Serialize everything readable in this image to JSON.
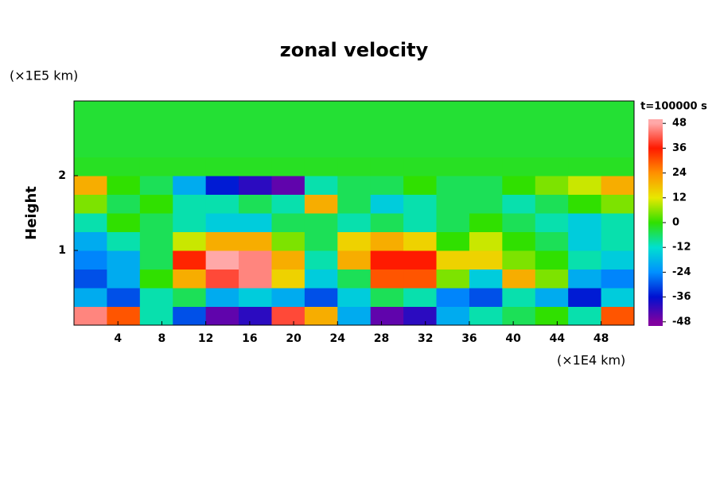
{
  "chart_data": {
    "type": "heatmap",
    "title": "zonal velocity",
    "y_label": "Height",
    "y_unit": "(×1E5 km)",
    "x_unit": "(×1E4 km)",
    "colorbar_title": "t=100000 s",
    "xlim": [
      0,
      51
    ],
    "ylim": [
      0,
      3
    ],
    "xticks": [
      4,
      8,
      12,
      16,
      20,
      24,
      28,
      32,
      36,
      40,
      44,
      48
    ],
    "yticks": [
      1,
      2
    ],
    "x": [
      1.5,
      4.5,
      7.5,
      10.5,
      13.5,
      16.5,
      19.5,
      22.5,
      25.5,
      28.5,
      31.5,
      34.5,
      37.5,
      40.5,
      43.5,
      46.5,
      49.5
    ],
    "y": [
      0.125,
      0.375,
      0.625,
      0.875,
      1.125,
      1.375,
      1.625,
      1.875,
      2.125,
      2.375,
      2.625,
      2.875
    ],
    "z": [
      [
        45,
        30,
        -10,
        -30,
        -45,
        -40,
        40,
        20,
        -20,
        -45,
        -40,
        -20,
        -10,
        -5,
        0,
        -10,
        30
      ],
      [
        -20,
        -30,
        -10,
        -5,
        -20,
        -15,
        -20,
        -30,
        -15,
        -5,
        -10,
        -25,
        -30,
        -10,
        -20,
        -35,
        -15
      ],
      [
        -30,
        -20,
        0,
        20,
        40,
        45,
        15,
        -15,
        -5,
        30,
        30,
        5,
        -15,
        20,
        5,
        -20,
        -25
      ],
      [
        -25,
        -20,
        -5,
        35,
        48,
        45,
        20,
        -10,
        20,
        36,
        36,
        15,
        15,
        5,
        0,
        -10,
        -15
      ],
      [
        -20,
        -10,
        -5,
        10,
        20,
        20,
        5,
        -5,
        15,
        20,
        15,
        0,
        10,
        0,
        -5,
        -15,
        -10
      ],
      [
        -10,
        0,
        -5,
        -10,
        -15,
        -15,
        -5,
        -5,
        -10,
        -5,
        -10,
        -5,
        0,
        -5,
        -10,
        -15,
        -10
      ],
      [
        5,
        -5,
        0,
        -10,
        -10,
        -5,
        -10,
        20,
        -5,
        -15,
        -10,
        -5,
        -5,
        -10,
        -5,
        0,
        5
      ],
      [
        20,
        0,
        -5,
        -20,
        -35,
        -40,
        -45,
        -10,
        -5,
        -5,
        0,
        -5,
        -5,
        0,
        5,
        10,
        20
      ],
      [
        -2,
        -2,
        -2,
        -2,
        -2,
        -2,
        -2,
        -2,
        -2,
        -2,
        -2,
        -2,
        -2,
        -2,
        -2,
        -2,
        -2
      ],
      [
        -3,
        -3,
        -3,
        -3,
        -3,
        -3,
        -3,
        -3,
        -3,
        -3,
        -3,
        -3,
        -3,
        -3,
        -3,
        -3,
        -3
      ],
      [
        -3,
        -3,
        -3,
        -3,
        -3,
        -3,
        -3,
        -3,
        -3,
        -3,
        -3,
        -3,
        -3,
        -3,
        -3,
        -3,
        -3
      ],
      [
        -3,
        -3,
        -3,
        -3,
        -3,
        -3,
        -3,
        -3,
        -3,
        -3,
        -3,
        -3,
        -3,
        -3,
        -3,
        -3,
        -3
      ]
    ],
    "clim": [
      -50,
      50
    ],
    "cticks": [
      48,
      36,
      24,
      12,
      0,
      -12,
      -24,
      -36,
      -48
    ],
    "colormap": [
      "#8000a0",
      "#0010d0",
      "#0090ff",
      "#00e0d0",
      "#30e000",
      "#e8e800",
      "#ff9000",
      "#ff1a00",
      "#ffa8a8"
    ]
  }
}
